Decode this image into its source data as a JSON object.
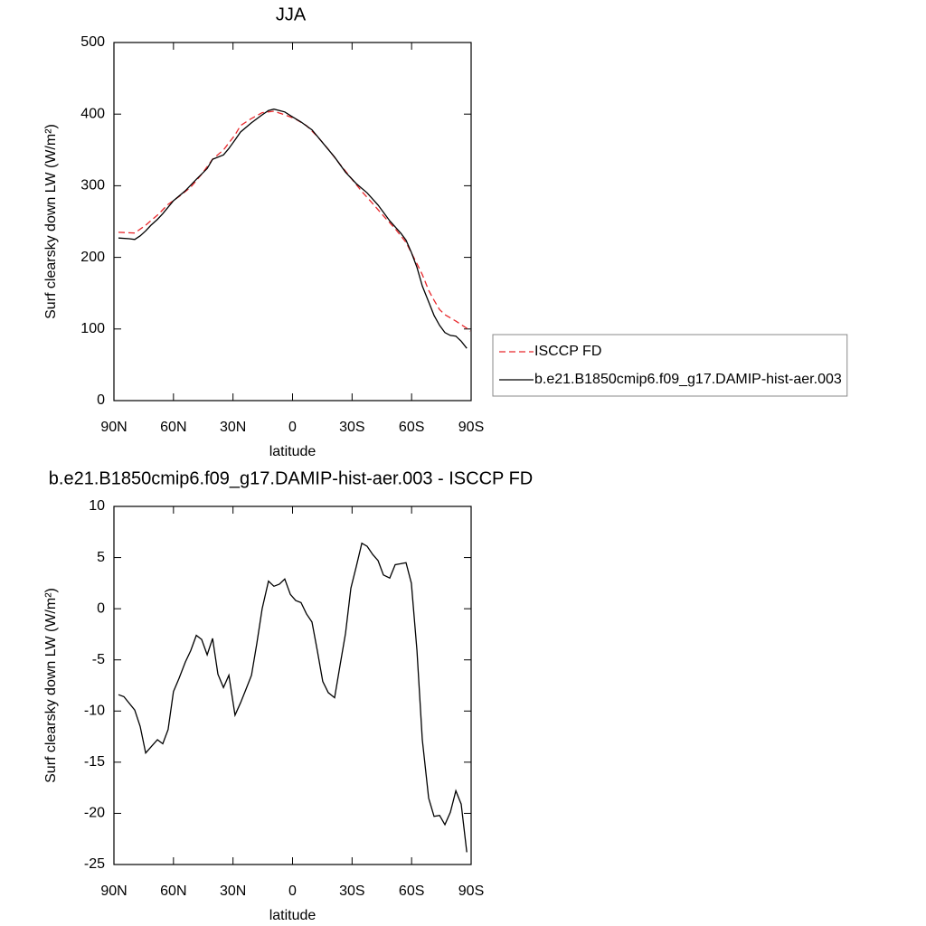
{
  "chart_data": [
    {
      "type": "line",
      "title": "JJA",
      "xlabel": "latitude",
      "ylabel": "Surf clearsky down LW (W/m²)",
      "xlim": [
        90,
        -90
      ],
      "xticks": [
        {
          "value": 90,
          "label": "90N"
        },
        {
          "value": 60,
          "label": "60N"
        },
        {
          "value": 30,
          "label": "30N"
        },
        0,
        {
          "value": -30,
          "label": "30S"
        },
        {
          "value": -60,
          "label": "60S"
        },
        {
          "value": -90,
          "label": "90S"
        }
      ],
      "ylim": [
        0,
        500
      ],
      "yticks": [
        0,
        100,
        200,
        300,
        400,
        500
      ],
      "legend": "right",
      "series": [
        {
          "name": "ISCCP FD",
          "color": "#e8272b",
          "line_style": "dashed",
          "x": [
            87.7,
            79.5,
            74,
            68.1,
            62.7,
            57.2,
            51.3,
            45.8,
            40.3,
            34.8,
            29,
            26.2,
            20.7,
            15.3,
            9.4,
            3.9,
            -1.6,
            -7.0,
            -12.5,
            -18,
            -23.9,
            -29.4,
            -34.9,
            -40.4,
            -45.8,
            -51.7,
            -57.2,
            -62.7,
            -65.4,
            -68.6,
            -71.3,
            -74.1,
            -76.8,
            -82.3,
            -87.8,
            -89.6
          ],
          "values": [
            235,
            234,
            245,
            259,
            274,
            285,
            298,
            316,
            337,
            350,
            371,
            384,
            394,
            402,
            404,
            399,
            393,
            384,
            369,
            351,
            330,
            311,
            292,
            275,
            258,
            240,
            221,
            191,
            176,
            154,
            140,
            127,
            120,
            111,
            101,
            97
          ]
        },
        {
          "name": "b.e21.B1850cmip6.f09_g17.DAMIP-hist-aer.003",
          "color": "#000000",
          "line_style": "solid",
          "x": [
            87.7,
            82.3,
            79.5,
            76.8,
            74,
            71.3,
            68.1,
            65.4,
            60,
            54,
            48.5,
            43,
            40.3,
            34.8,
            32.1,
            29,
            26.2,
            20.7,
            15.3,
            12.1,
            9.4,
            6.6,
            3.9,
            1.1,
            -4.3,
            -9.8,
            -15.2,
            -21.2,
            -26.7,
            -32.1,
            -37.6,
            -43.1,
            -49,
            -54.5,
            -57.2,
            -59.9,
            -62.7,
            -65.4,
            -68.6,
            -71.3,
            -74.1,
            -76.8,
            -79.5,
            -82.3,
            -85,
            -87.8
          ],
          "values": [
            227,
            226,
            225,
            230,
            237,
            245,
            253,
            261,
            279,
            293,
            309,
            324,
            337,
            343,
            352,
            364,
            375,
            388,
            399,
            405,
            407,
            405,
            403,
            398,
            389,
            378,
            360,
            340,
            319,
            303,
            290,
            273,
            251,
            234,
            224,
            207,
            186,
            160,
            138,
            119,
            105,
            95,
            91,
            90,
            83,
            73
          ]
        }
      ]
    },
    {
      "type": "line",
      "title": "b.e21.B1850cmip6.f09_g17.DAMIP-hist-aer.003 - ISCCP FD",
      "xlabel": "latitude",
      "ylabel": "Surf clearsky down LW (W/m²)",
      "xlim": [
        90,
        -90
      ],
      "xticks": [
        {
          "value": 90,
          "label": "90N"
        },
        {
          "value": 60,
          "label": "60N"
        },
        {
          "value": 30,
          "label": "30N"
        },
        0,
        {
          "value": -30,
          "label": "30S"
        },
        {
          "value": -60,
          "label": "60S"
        },
        {
          "value": -90,
          "label": "90S"
        }
      ],
      "ylim": [
        -25,
        10
      ],
      "yticks": [
        -25,
        -20,
        -15,
        -10,
        -5,
        0,
        5,
        10
      ],
      "series": [
        {
          "color": "#000000",
          "line_style": "solid",
          "x": [
            87.7,
            85,
            79.5,
            76.8,
            74,
            71.3,
            68.1,
            65.4,
            62.7,
            60,
            57.2,
            54,
            51.3,
            48.5,
            45.8,
            43,
            40.3,
            37.6,
            34.8,
            32.1,
            29,
            26.2,
            23.5,
            20.7,
            18,
            15.3,
            12.1,
            9.4,
            6.6,
            3.9,
            1.1,
            -1.6,
            -4.3,
            -7.0,
            -9.8,
            -12.5,
            -15.2,
            -18,
            -21.2,
            -23.9,
            -26.7,
            -29.4,
            -32.1,
            -34.9,
            -37.6,
            -40.4,
            -43.1,
            -45.8,
            -49,
            -51.7,
            -54.5,
            -57.2,
            -59.9,
            -62.7,
            -65.4,
            -68.6,
            -71.3,
            -74.1,
            -76.8,
            -79.5,
            -82.3,
            -85,
            -87.8
          ],
          "values": [
            -8.4,
            -8.6,
            -9.9,
            -11.5,
            -14.1,
            -13.5,
            -12.8,
            -13.2,
            -11.8,
            -8.1,
            -6.8,
            -5.2,
            -4.1,
            -2.6,
            -3.0,
            -4.5,
            -2.9,
            -6.4,
            -7.7,
            -6.5,
            -10.4,
            -9.2,
            -7.9,
            -6.5,
            -3.4,
            0,
            2.7,
            2.2,
            2.4,
            2.9,
            1.4,
            0.8,
            0.6,
            -0.5,
            -1.3,
            -4.1,
            -7.1,
            -8.2,
            -8.7,
            -5.6,
            -2.4,
            2.0,
            4.1,
            6.4,
            6.1,
            5.3,
            4.7,
            3.3,
            3.0,
            4.3,
            4.4,
            4.5,
            2.5,
            -4.1,
            -12.8,
            -18.5,
            -20.3,
            -20.2,
            -21.1,
            -19.9,
            -17.8,
            -19.1,
            -23.8
          ]
        }
      ]
    }
  ]
}
